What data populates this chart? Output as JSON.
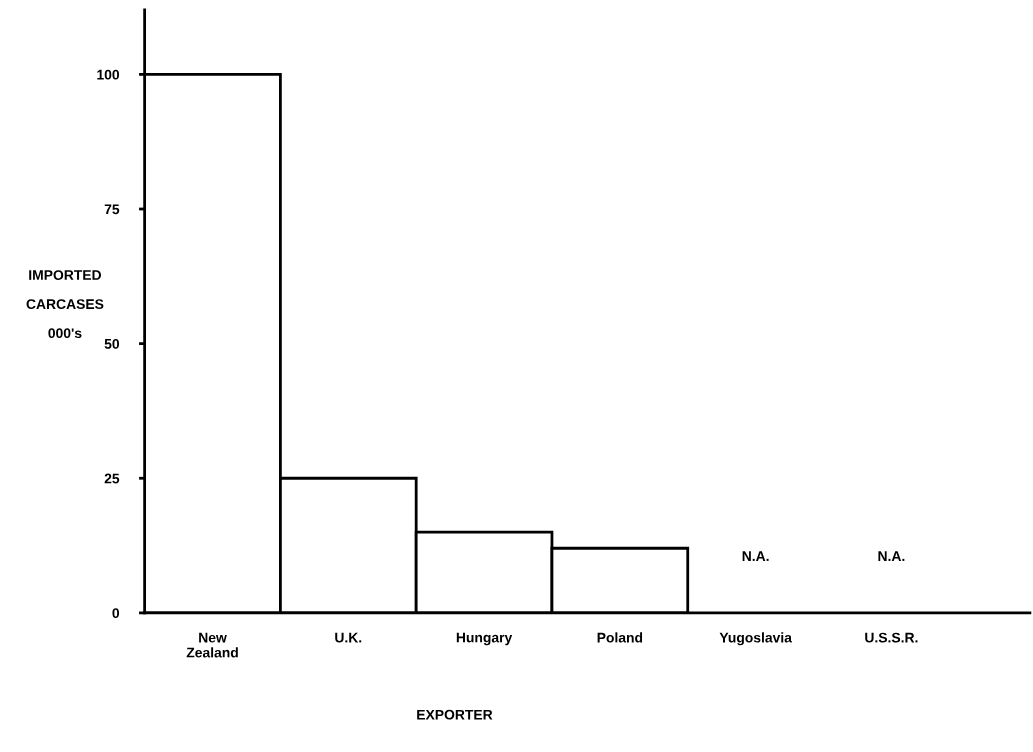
{
  "chart_data": {
    "type": "bar",
    "categories": [
      "New\nZealand",
      "U.K.",
      "Hungary",
      "Poland",
      "Yugoslavia",
      "U.S.S.R."
    ],
    "values": [
      100,
      25,
      15,
      12,
      null,
      null
    ],
    "color": "#ffffff",
    "xlabel": "EXPORTER",
    "ylabel": "IMPORTED\nCARCASES\n000's",
    "ylim": [
      0,
      112
    ],
    "yticks": [
      0,
      25,
      50,
      75,
      100
    ],
    "grid": false,
    "value_labels": [
      null,
      null,
      null,
      null,
      "N.A.",
      "N.A."
    ]
  }
}
